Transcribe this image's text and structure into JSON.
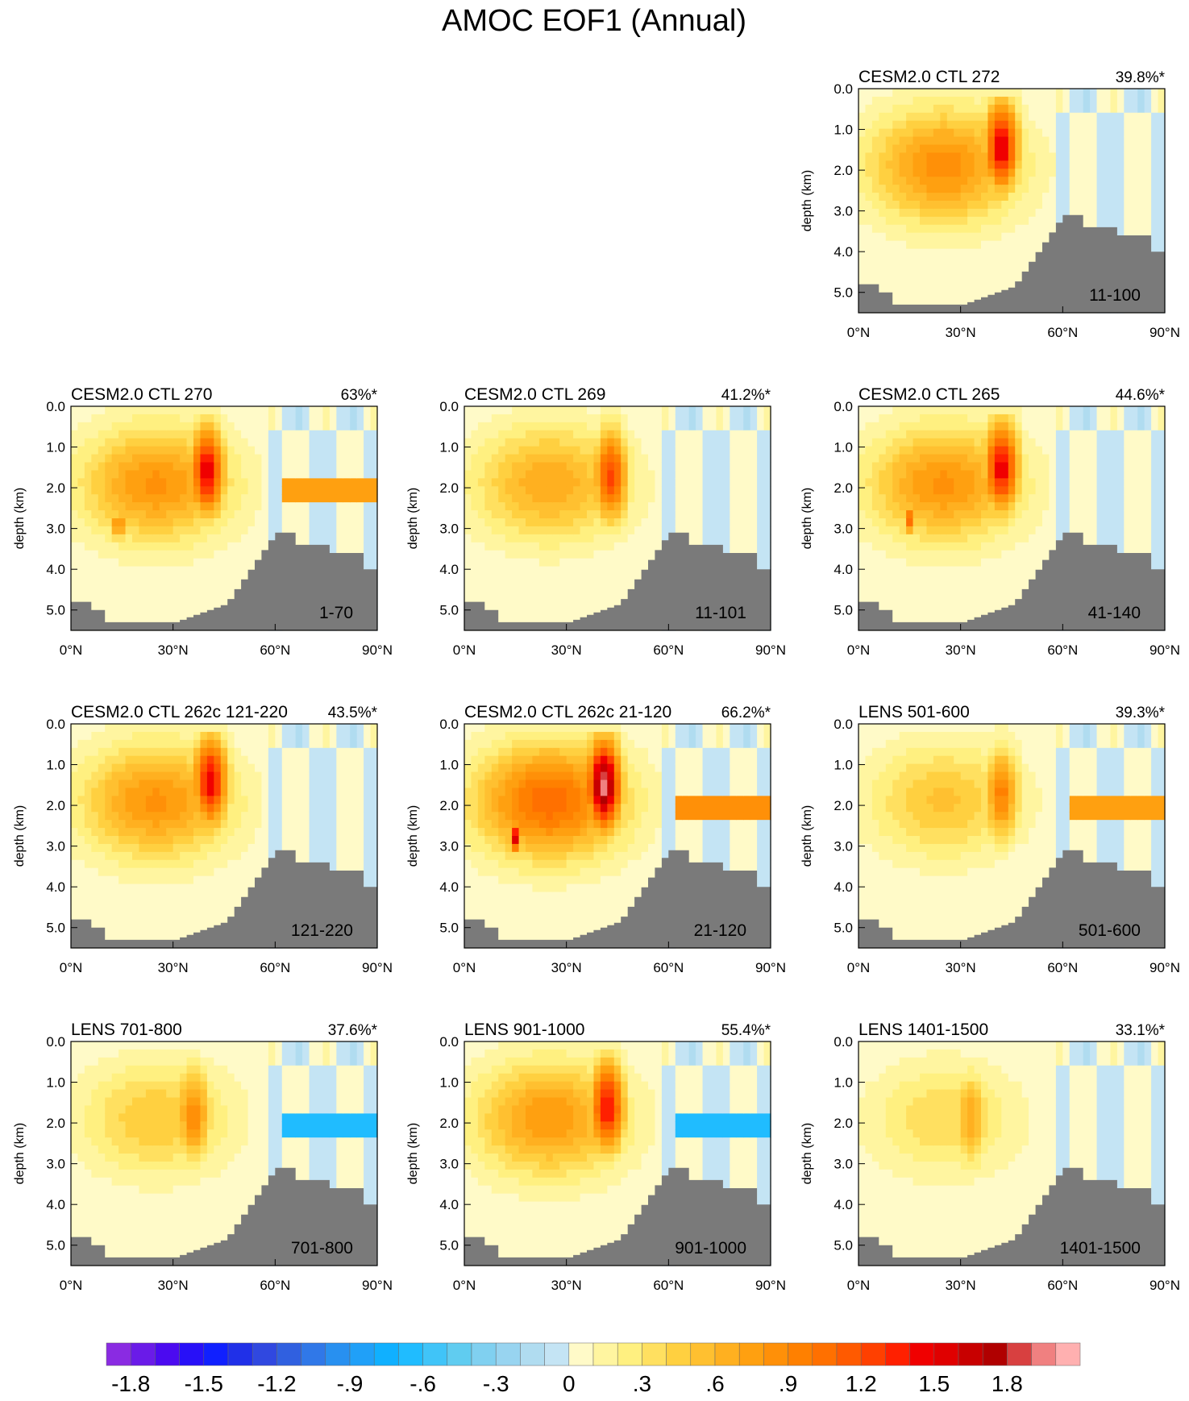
{
  "title": "AMOC EOF1 (Annual)",
  "chart_data": {
    "type": "contour",
    "title": "AMOC EOF1 (Annual)",
    "x_ticks": [
      "0°N",
      "30°N",
      "60°N",
      "90°N"
    ],
    "x_values": [
      0,
      30,
      60,
      90
    ],
    "y_ticks": [
      "0.0",
      "1.0",
      "2.0",
      "3.0",
      "4.0",
      "5.0"
    ],
    "y_values": [
      0,
      1,
      2,
      3,
      4,
      5
    ],
    "ylabel": "depth (km)",
    "xlim": [
      0,
      90
    ],
    "ylim": [
      5.5,
      0
    ],
    "colorbar": {
      "levels": [
        -1.9,
        -1.8,
        -1.7,
        -1.6,
        -1.5,
        -1.4,
        -1.3,
        -1.2,
        -1.1,
        -1.0,
        -0.9,
        -0.8,
        -0.7,
        -0.6,
        -0.5,
        -0.4,
        -0.3,
        -0.2,
        -0.1,
        0,
        0.1,
        0.2,
        0.3,
        0.4,
        0.5,
        0.6,
        0.7,
        0.8,
        0.9,
        1.0,
        1.1,
        1.2,
        1.3,
        1.4,
        1.5,
        1.6,
        1.7,
        1.8,
        1.9,
        2.0
      ],
      "colors": [
        "#8a2be2",
        "#6a1be8",
        "#4b0af0",
        "#2810f8",
        "#1020ff",
        "#2030e8",
        "#3048e0",
        "#3060e0",
        "#3078e8",
        "#2890f0",
        "#20a0f8",
        "#10b0ff",
        "#20bcff",
        "#40c4f8",
        "#60ccf0",
        "#80d0f0",
        "#98d4f0",
        "#b0dcf0",
        "#c4e4f4",
        "#fffac8",
        "#fff5a0",
        "#fff080",
        "#ffe060",
        "#ffd040",
        "#ffc030",
        "#ffb020",
        "#ffa010",
        "#ff9008",
        "#ff8000",
        "#ff7000",
        "#ff5a00",
        "#ff4000",
        "#ff2000",
        "#f00000",
        "#e00000",
        "#c80000",
        "#b00000",
        "#d84040",
        "#f08080",
        "#ffb0b0"
      ],
      "tick_labels": [
        "-1.8",
        "-1.5",
        "-1.2",
        "-.9",
        "-.6",
        "-.3",
        "0",
        ".3",
        ".6",
        ".9",
        "1.2",
        "1.5",
        "1.8"
      ],
      "tick_values": [
        -1.8,
        -1.5,
        -1.2,
        -0.9,
        -0.6,
        -0.3,
        0,
        0.3,
        0.6,
        0.9,
        1.2,
        1.5,
        1.8
      ]
    },
    "panels": [
      {
        "title": "CESM2.0 CTL 272",
        "percent": "39.8%*",
        "range": "11-100",
        "peak": 1.55,
        "peak_lat": 42,
        "peak_depth": 1.4,
        "blob": [],
        "band": null
      },
      {
        "title": "CESM2.0 CTL 270",
        "percent": "63%*",
        "range": "1-70",
        "peak": 1.5,
        "peak_lat": 40,
        "peak_depth": 1.6,
        "blob": [
          {
            "lat": 14,
            "depth": 2.9,
            "amp": 1.3
          }
        ],
        "band": 0.75
      },
      {
        "title": "CESM2.0 CTL 269",
        "percent": "41.2%*",
        "range": "11-101",
        "peak": 1.25,
        "peak_lat": 43,
        "peak_depth": 1.7,
        "blob": [],
        "band": null
      },
      {
        "title": "CESM2.0 CTL 265",
        "percent": "44.6%*",
        "range": "41-140",
        "peak": 1.5,
        "peak_lat": 42,
        "peak_depth": 1.5,
        "blob": [
          {
            "lat": 15,
            "depth": 2.8,
            "amp": 1.1
          }
        ],
        "band": null
      },
      {
        "title": "CESM2.0 CTL 262c 121-220",
        "percent": "43.5%*",
        "range": "121-220",
        "peak": 1.5,
        "peak_lat": 41,
        "peak_depth": 1.4,
        "blob": [],
        "band": null
      },
      {
        "title": "CESM2.0 CTL 262c 21-120",
        "percent": "66.2%*",
        "range": "21-120",
        "peak": 1.95,
        "peak_lat": 41,
        "peak_depth": 1.5,
        "blob": [
          {
            "lat": 15,
            "depth": 2.8,
            "amp": 1.6
          }
        ],
        "band": 0.8
      },
      {
        "title": "LENS 501-600",
        "percent": "39.3%*",
        "range": "501-600",
        "peak": 0.95,
        "peak_lat": 42,
        "peak_depth": 1.7,
        "blob": [],
        "band": 0.75
      },
      {
        "title": "LENS 701-800",
        "percent": "37.6%*",
        "range": "701-800",
        "peak": 0.9,
        "peak_lat": 36,
        "peak_depth": 1.8,
        "blob": [],
        "band": -0.65
      },
      {
        "title": "LENS 901-1000",
        "percent": "55.4%*",
        "range": "901-1000",
        "peak": 1.45,
        "peak_lat": 42,
        "peak_depth": 1.6,
        "blob": [],
        "band": -0.65
      },
      {
        "title": "LENS 1401-1500",
        "percent": "33.1%*",
        "range": "1401-1500",
        "peak": 0.7,
        "peak_lat": 33,
        "peak_depth": 1.9,
        "blob": [],
        "band": null
      }
    ]
  }
}
